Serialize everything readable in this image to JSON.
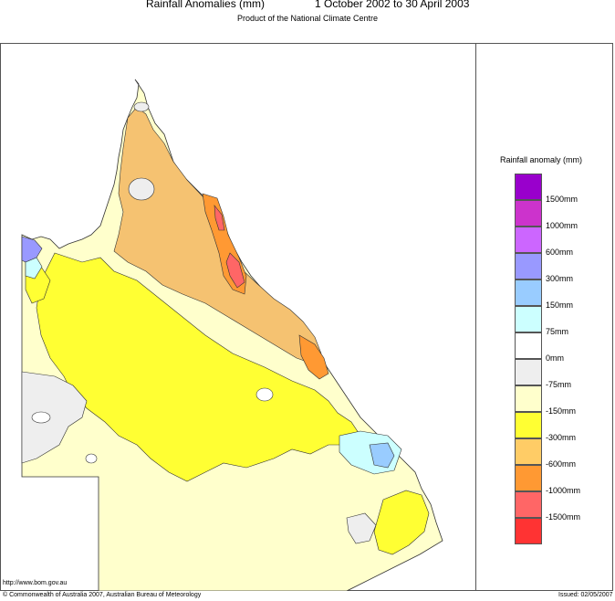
{
  "header": {
    "title_left": "Rainfall Anomalies (mm)",
    "title_right": "1 October 2002 to 30 April 2003",
    "subtitle": "Product of the National Climate Centre"
  },
  "legend": {
    "title": "Rainfall anomaly (mm)",
    "items": [
      {
        "label": "1500mm",
        "color": "#9900cc"
      },
      {
        "label": "1000mm",
        "color": "#cc33cc"
      },
      {
        "label": "600mm",
        "color": "#cc66ff"
      },
      {
        "label": "300mm",
        "color": "#9999ff"
      },
      {
        "label": "150mm",
        "color": "#99ccff"
      },
      {
        "label": "75mm",
        "color": "#ccffff"
      },
      {
        "label": "0mm",
        "color": "#ffffff"
      },
      {
        "label": "-75mm",
        "color": "#eeeeee"
      },
      {
        "label": "-150mm",
        "color": "#ffffcc"
      },
      {
        "label": "-300mm",
        "color": "#ffff33"
      },
      {
        "label": "-600mm",
        "color": "#ffcc66"
      },
      {
        "label": "-1000mm",
        "color": "#ff9933"
      },
      {
        "label": "-1500mm",
        "color": "#ff6666"
      },
      {
        "label": "",
        "color": "#ff3333"
      }
    ]
  },
  "footer": {
    "url": "http://www.bom.gov.au",
    "copyright": "© Commonwealth of Australia 2007, Australian Bureau of Meteorology",
    "issued": "Issued: 02/05/2007"
  },
  "map_colors": {
    "yellow": "#ffff33",
    "pale": "#ffffcc",
    "grey": "#eeeeee",
    "orange_light": "#f5c271",
    "orange": "#ff9933",
    "red": "#ff6666",
    "cyan": "#ccffff",
    "blue": "#99ccff",
    "violet": "#9999ff"
  }
}
